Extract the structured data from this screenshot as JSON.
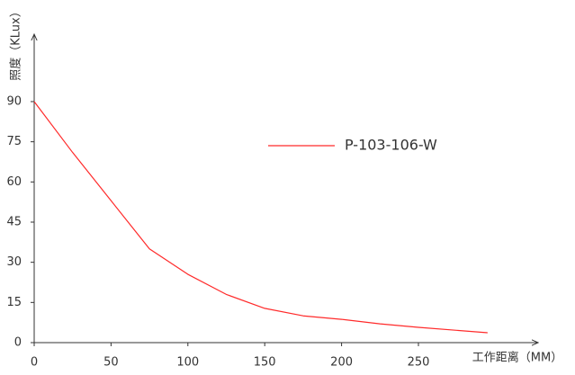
{
  "chart_data": {
    "type": "line",
    "y_label": "照度（KLux）",
    "x_label": "工作距离（MM）",
    "x": [
      0,
      25,
      50,
      75,
      100,
      125,
      150,
      175,
      200,
      225,
      250,
      295
    ],
    "series": [
      {
        "name": "P-103-106-W",
        "color": "#ff2a2a",
        "values": [
          90,
          71,
          53,
          35,
          25.5,
          18,
          12.8,
          10,
          8.7,
          7,
          5.7,
          3.7
        ]
      }
    ],
    "xlim": [
      0,
      327
    ],
    "ylim": [
      0,
      114
    ],
    "xticks": [
      0,
      50,
      100,
      150,
      200,
      250
    ],
    "yticks": [
      0,
      15,
      30,
      45,
      60,
      75,
      90
    ]
  }
}
